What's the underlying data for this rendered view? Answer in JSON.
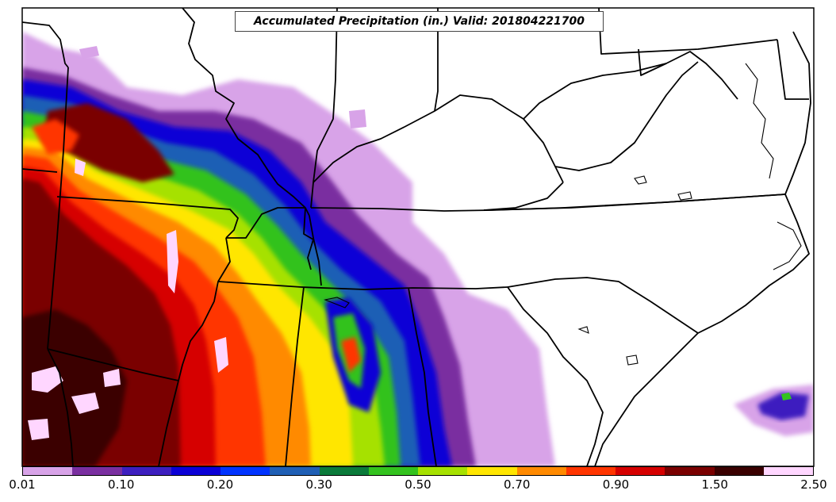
{
  "title": "Accumulated Precipitation (in.) Valid: 201804221700",
  "colorbar": {
    "colors": [
      "#d8a3e8",
      "#7a2fa0",
      "#3d1fbf",
      "#0b00d6",
      "#0033ff",
      "#1f5fb5",
      "#0a7a3a",
      "#33c21e",
      "#a6e100",
      "#ffe600",
      "#ff8a00",
      "#ff3500",
      "#d60000",
      "#7a0000",
      "#3a0000",
      "#ffd6ff"
    ],
    "tick_labels": [
      "0.01",
      "0.10",
      "0.20",
      "0.30",
      "0.50",
      "0.70",
      "0.90",
      "1.50",
      "2.50"
    ],
    "tick_fractions": [
      0,
      0.125,
      0.25,
      0.375,
      0.5,
      0.625,
      0.75,
      0.875,
      1
    ]
  }
}
